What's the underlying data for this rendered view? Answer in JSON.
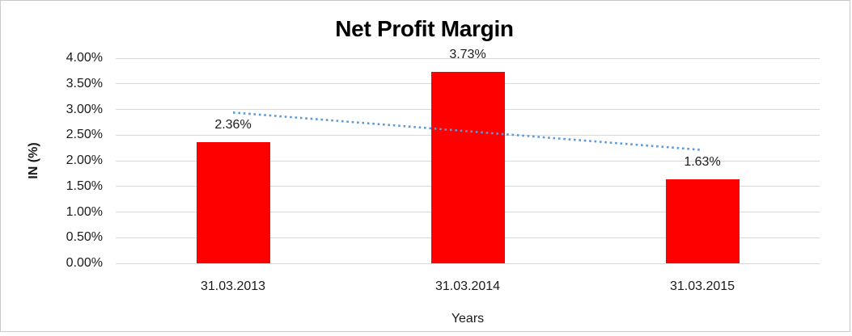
{
  "chart_data": {
    "type": "bar",
    "title": "Net Profit Margin",
    "categories": [
      "31.03.2013",
      "31.03.2014",
      "31.03.2015"
    ],
    "values": [
      2.36,
      3.73,
      1.63
    ],
    "bar_labels": [
      "2.36%",
      "3.73%",
      "1.63%"
    ],
    "xlabel": "Years",
    "ylabel": "IN (%)",
    "ylim": [
      0,
      4
    ],
    "ytick_step": 0.5,
    "yticks": [
      {
        "value": 0.0,
        "label": "0.00%"
      },
      {
        "value": 0.5,
        "label": "0.50%"
      },
      {
        "value": 1.0,
        "label": "1.00%"
      },
      {
        "value": 1.5,
        "label": "1.50%"
      },
      {
        "value": 2.0,
        "label": "2.00%"
      },
      {
        "value": 2.5,
        "label": "2.50%"
      },
      {
        "value": 3.0,
        "label": "3.00%"
      },
      {
        "value": 3.5,
        "label": "3.50%"
      },
      {
        "value": 4.0,
        "label": "4.00%"
      }
    ],
    "grid": true,
    "legend": false,
    "trendline": {
      "type": "linear",
      "style": "dotted",
      "color": "#5B9BD5",
      "start_value": 2.94,
      "end_value": 2.21
    },
    "colors": {
      "bar": "#FF0000",
      "trendline": "#5B9BD5",
      "gridline": "#D9D9D9",
      "title_text": "#000000",
      "axis_text": "#1A1A1A",
      "frame_border": "#C9C9C9",
      "background": "#FFFFFF"
    }
  }
}
